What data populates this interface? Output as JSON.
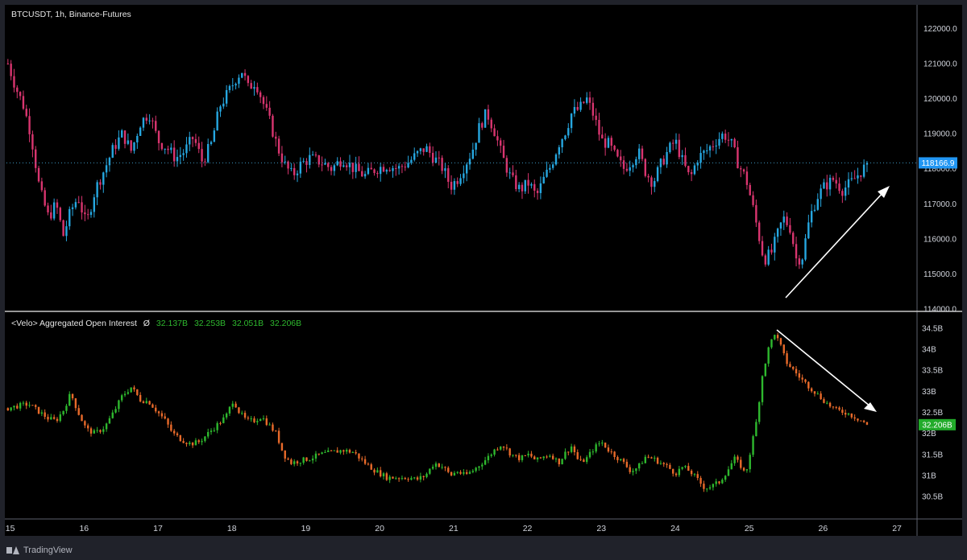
{
  "header": {
    "symbol_title": "BTCUSDT, 1h, Binance-Futures"
  },
  "oi_legend": {
    "title": "<Velo> Aggregated Open Interest",
    "symbol": "Ø",
    "values": [
      "32.137B",
      "32.253B",
      "32.051B",
      "32.206B"
    ]
  },
  "footer": {
    "brand": "TradingView"
  },
  "colors": {
    "up": "#26a7e0",
    "down": "#d9356f",
    "oi_up": "#2eb82e",
    "oi_down": "#e86a2a",
    "background": "#000000"
  },
  "chart_data": [
    {
      "type": "candlestick",
      "title": "BTCUSDT, 1h, Binance-Futures",
      "y_ticks": [
        "122000.0",
        "121000.0",
        "120000.0",
        "119000.0",
        "118000.0",
        "117000.0",
        "116000.0",
        "115000.0",
        "114000.0"
      ],
      "ylim": [
        114000,
        122400
      ],
      "last_price": 118166.9,
      "last_price_label": "118166.9",
      "x_ticks": [
        "15",
        "16",
        "17",
        "18",
        "19",
        "20",
        "21",
        "22",
        "23",
        "24",
        "25",
        "26",
        "27"
      ],
      "xlim": [
        14.95,
        27.25
      ],
      "series_closes": [
        [
          14.97,
          121000
        ],
        [
          15.08,
          120300
        ],
        [
          15.18,
          119800
        ],
        [
          15.28,
          119000
        ],
        [
          15.4,
          117400
        ],
        [
          15.52,
          116600
        ],
        [
          15.62,
          117000
        ],
        [
          15.72,
          116100
        ],
        [
          15.82,
          116800
        ],
        [
          15.92,
          117200
        ],
        [
          16.03,
          116400
        ],
        [
          16.15,
          117400
        ],
        [
          16.28,
          118000
        ],
        [
          16.4,
          118600
        ],
        [
          16.52,
          119000
        ],
        [
          16.64,
          118500
        ],
        [
          16.76,
          119300
        ],
        [
          16.88,
          119600
        ],
        [
          17.0,
          118800
        ],
        [
          17.12,
          118600
        ],
        [
          17.24,
          118300
        ],
        [
          17.36,
          118500
        ],
        [
          17.48,
          118900
        ],
        [
          17.6,
          118200
        ],
        [
          17.72,
          118700
        ],
        [
          17.84,
          119800
        ],
        [
          17.96,
          120200
        ],
        [
          18.06,
          120600
        ],
        [
          18.14,
          120800
        ],
        [
          18.22,
          120300
        ],
        [
          18.32,
          120500
        ],
        [
          18.42,
          119900
        ],
        [
          18.52,
          119300
        ],
        [
          18.62,
          118600
        ],
        [
          18.72,
          118100
        ],
        [
          18.82,
          117800
        ],
        [
          18.92,
          118100
        ],
        [
          19.05,
          118300
        ],
        [
          19.2,
          118200
        ],
        [
          19.35,
          118000
        ],
        [
          19.5,
          118300
        ],
        [
          19.65,
          118000
        ],
        [
          19.8,
          117800
        ],
        [
          19.95,
          118000
        ],
        [
          20.1,
          118100
        ],
        [
          20.25,
          118000
        ],
        [
          20.4,
          118200
        ],
        [
          20.5,
          118400
        ],
        [
          20.62,
          118600
        ],
        [
          20.74,
          118300
        ],
        [
          20.86,
          118000
        ],
        [
          20.96,
          117500
        ],
        [
          21.05,
          117700
        ],
        [
          21.15,
          118100
        ],
        [
          21.25,
          118500
        ],
        [
          21.35,
          119200
        ],
        [
          21.45,
          119600
        ],
        [
          21.55,
          119100
        ],
        [
          21.65,
          118400
        ],
        [
          21.78,
          117700
        ],
        [
          21.9,
          117400
        ],
        [
          22.02,
          117600
        ],
        [
          22.12,
          117200
        ],
        [
          22.22,
          117700
        ],
        [
          22.32,
          118100
        ],
        [
          22.42,
          118700
        ],
        [
          22.52,
          119100
        ],
        [
          22.6,
          119600
        ],
        [
          22.7,
          119700
        ],
        [
          22.8,
          120000
        ],
        [
          22.9,
          119500
        ],
        [
          23.0,
          118800
        ],
        [
          23.1,
          118700
        ],
        [
          23.2,
          118300
        ],
        [
          23.3,
          118000
        ],
        [
          23.4,
          118200
        ],
        [
          23.5,
          118500
        ],
        [
          23.6,
          117900
        ],
        [
          23.7,
          117600
        ],
        [
          23.8,
          118100
        ],
        [
          23.9,
          118500
        ],
        [
          24.0,
          118800
        ],
        [
          24.1,
          118200
        ],
        [
          24.2,
          117700
        ],
        [
          24.3,
          118300
        ],
        [
          24.42,
          118500
        ],
        [
          24.55,
          118800
        ],
        [
          24.66,
          119000
        ],
        [
          24.76,
          118700
        ],
        [
          24.86,
          118100
        ],
        [
          24.96,
          117700
        ],
        [
          25.04,
          117000
        ],
        [
          25.12,
          116200
        ],
        [
          25.2,
          115400
        ],
        [
          25.3,
          115600
        ],
        [
          25.38,
          116100
        ],
        [
          25.46,
          116600
        ],
        [
          25.56,
          116300
        ],
        [
          25.64,
          115400
        ],
        [
          25.72,
          115500
        ],
        [
          25.82,
          116600
        ],
        [
          25.92,
          117200
        ],
        [
          26.02,
          117500
        ],
        [
          26.14,
          117700
        ],
        [
          26.26,
          117400
        ],
        [
          26.38,
          117600
        ],
        [
          26.5,
          117900
        ],
        [
          26.62,
          118166.9
        ]
      ]
    },
    {
      "type": "candlestick",
      "title": "<Velo> Aggregated Open Interest",
      "y_ticks": [
        "34.5B",
        "34B",
        "33.5B",
        "33B",
        "32.5B",
        "32B",
        "31.5B",
        "31B",
        "30.5B"
      ],
      "ylim": [
        30.1,
        34.65
      ],
      "last_value": 32.206,
      "last_value_label": "32.206B",
      "ohlc_last": {
        "open": "32.137B",
        "high": "32.253B",
        "low": "32.051B",
        "close": "32.206B"
      },
      "series_closes": [
        [
          14.97,
          32.6
        ],
        [
          15.1,
          32.65
        ],
        [
          15.25,
          32.7
        ],
        [
          15.4,
          32.5
        ],
        [
          15.52,
          32.35
        ],
        [
          15.62,
          32.3
        ],
        [
          15.72,
          32.55
        ],
        [
          15.82,
          32.95
        ],
        [
          15.92,
          32.5
        ],
        [
          16.03,
          32.1
        ],
        [
          16.15,
          32.0
        ],
        [
          16.28,
          32.15
        ],
        [
          16.4,
          32.5
        ],
        [
          16.52,
          32.9
        ],
        [
          16.64,
          33.1
        ],
        [
          16.76,
          32.8
        ],
        [
          16.88,
          32.75
        ],
        [
          17.0,
          32.5
        ],
        [
          17.1,
          32.3
        ],
        [
          17.2,
          32.0
        ],
        [
          17.32,
          31.85
        ],
        [
          17.44,
          31.75
        ],
        [
          17.56,
          31.8
        ],
        [
          17.68,
          32.0
        ],
        [
          17.8,
          32.2
        ],
        [
          17.92,
          32.4
        ],
        [
          18.02,
          32.8
        ],
        [
          18.1,
          32.5
        ],
        [
          18.2,
          32.3
        ],
        [
          18.3,
          32.3
        ],
        [
          18.4,
          32.4
        ],
        [
          18.5,
          32.2
        ],
        [
          18.6,
          32.0
        ],
        [
          18.7,
          31.5
        ],
        [
          18.8,
          31.3
        ],
        [
          18.92,
          31.35
        ],
        [
          19.05,
          31.4
        ],
        [
          19.2,
          31.5
        ],
        [
          19.35,
          31.55
        ],
        [
          19.5,
          31.6
        ],
        [
          19.65,
          31.55
        ],
        [
          19.8,
          31.3
        ],
        [
          19.95,
          31.1
        ],
        [
          20.1,
          30.95
        ],
        [
          20.25,
          30.95
        ],
        [
          20.4,
          30.95
        ],
        [
          20.5,
          30.9
        ],
        [
          20.62,
          31.0
        ],
        [
          20.74,
          31.3
        ],
        [
          20.86,
          31.2
        ],
        [
          20.96,
          31.0
        ],
        [
          21.05,
          31.1
        ],
        [
          21.15,
          31.0
        ],
        [
          21.25,
          31.1
        ],
        [
          21.35,
          31.25
        ],
        [
          21.45,
          31.4
        ],
        [
          21.55,
          31.6
        ],
        [
          21.65,
          31.75
        ],
        [
          21.78,
          31.5
        ],
        [
          21.9,
          31.4
        ],
        [
          22.02,
          31.5
        ],
        [
          22.12,
          31.35
        ],
        [
          22.22,
          31.45
        ],
        [
          22.32,
          31.5
        ],
        [
          22.42,
          31.3
        ],
        [
          22.52,
          31.55
        ],
        [
          22.6,
          31.7
        ],
        [
          22.7,
          31.3
        ],
        [
          22.8,
          31.4
        ],
        [
          22.9,
          31.65
        ],
        [
          23.0,
          31.8
        ],
        [
          23.1,
          31.6
        ],
        [
          23.2,
          31.45
        ],
        [
          23.3,
          31.3
        ],
        [
          23.4,
          31.1
        ],
        [
          23.5,
          31.2
        ],
        [
          23.6,
          31.45
        ],
        [
          23.7,
          31.4
        ],
        [
          23.8,
          31.3
        ],
        [
          23.9,
          31.2
        ],
        [
          24.0,
          31.05
        ],
        [
          24.1,
          31.2
        ],
        [
          24.2,
          31.1
        ],
        [
          24.3,
          30.9
        ],
        [
          24.4,
          30.7
        ],
        [
          24.5,
          30.75
        ],
        [
          24.6,
          30.85
        ],
        [
          24.7,
          31.1
        ],
        [
          24.8,
          31.4
        ],
        [
          24.9,
          31.2
        ],
        [
          24.95,
          31.0
        ],
        [
          25.02,
          31.6
        ],
        [
          25.1,
          32.3
        ],
        [
          25.18,
          33.4
        ],
        [
          25.26,
          34.0
        ],
        [
          25.34,
          34.4
        ],
        [
          25.42,
          34.1
        ],
        [
          25.5,
          33.7
        ],
        [
          25.6,
          33.5
        ],
        [
          25.7,
          33.3
        ],
        [
          25.82,
          33.1
        ],
        [
          25.94,
          32.9
        ],
        [
          26.06,
          32.7
        ],
        [
          26.18,
          32.55
        ],
        [
          26.3,
          32.5
        ],
        [
          26.42,
          32.4
        ],
        [
          26.52,
          32.3
        ],
        [
          26.62,
          32.206
        ]
      ]
    }
  ]
}
